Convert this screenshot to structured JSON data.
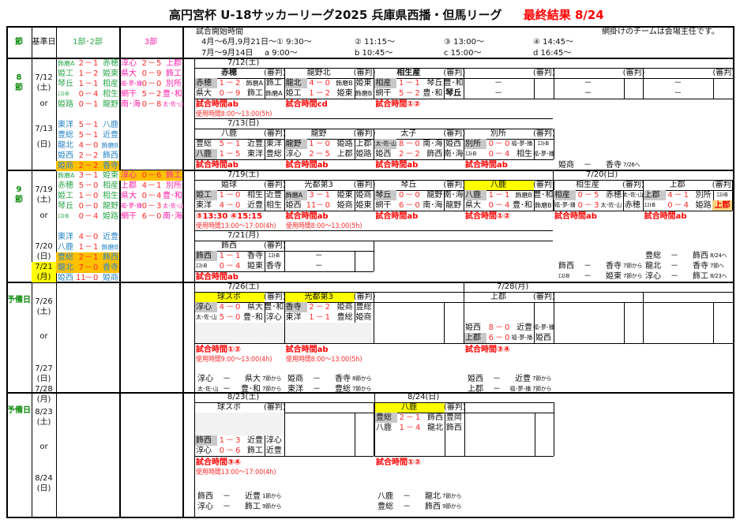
{
  "title": "高円宮杯 U-18サッカーリーグ2025 兵庫県西播・但馬リーグ",
  "result": "最終結果 8/24",
  "dash": "－",
  "colors": {
    "score": "#ff2a2a",
    "div12_first": "#2ea84f",
    "div12_second": "#2b86c9",
    "div3": "#ff22aa",
    "host": "#c8c8c8",
    "highlight": "#ffff00",
    "rescheduled": "#ffc000",
    "label": "#0a8a0a"
  },
  "header": {
    "col_setsu": "節",
    "col_date": "基準日",
    "col_div12": "1部･2部",
    "col_div3": "3部",
    "start_label": "試合開始時間",
    "row1": [
      "4月～6月,9月21日～①  9:30～",
      "②  11:15～",
      "③  13:00～",
      "④  14:45～"
    ],
    "row2": [
      "7月～9月14日",
      "a   9:00～",
      "b   10:45～",
      "c   15:00～",
      "d   16:45～"
    ],
    "note": "網掛けのチームは会場主任です。"
  },
  "sections": [
    {
      "label": [
        "8",
        "節"
      ],
      "dates": [
        "7/12",
        "(土)",
        "or",
        "7/13",
        "(日)"
      ],
      "div12": [
        {
          "h": "飾磨A",
          "hs": "2",
          "as": "1",
          "a": "赤穂"
        },
        {
          "h": "姫工",
          "hs": "1",
          "as": "2",
          "a": "姫東"
        },
        {
          "h": "琴丘",
          "hs": "1",
          "as": "1",
          "a": "相産"
        },
        {
          "h": "ｴｽﾄB",
          "hs": "0",
          "as": "4",
          "a": "相生"
        },
        {
          "h": "姫路",
          "hs": "0",
          "as": "1",
          "a": "龍野"
        },
        {
          "h": "東洋",
          "hs": "5",
          "as": "1",
          "a": "八鹿"
        },
        {
          "h": "豊総",
          "hs": "5",
          "as": "1",
          "a": "近豊"
        },
        {
          "h": "龍北",
          "hs": "4",
          "as": "0",
          "a": "飾磨B"
        },
        {
          "h": "姫西",
          "hs": "2",
          "as": "2",
          "a": "飾西"
        },
        {
          "h": "姫商",
          "hs": "2",
          "as": "2",
          "a": "香寺",
          "bg": "org"
        }
      ],
      "div3": [
        {
          "h": "淳心",
          "hs": "2",
          "as": "5",
          "a": "上郡"
        },
        {
          "h": "県大",
          "hs": "0",
          "as": "9",
          "a": "飾工"
        },
        {
          "h": "福･夢･播",
          "hs": "0",
          "as": "0",
          "a": "別所"
        },
        {
          "h": "網干",
          "hs": "5",
          "as": "2",
          "a": "豊･和"
        },
        {
          "h": "南･海",
          "hs": "0",
          "as": "8",
          "a": "太･佐･山"
        }
      ]
    },
    {
      "label": [
        "9",
        "節"
      ],
      "dates": [
        "7/19",
        "(土)",
        "or",
        "7/20",
        "(日)",
        "7/21",
        "(月)"
      ],
      "div12": [
        {
          "h": "飾磨A",
          "hs": "3",
          "as": "1",
          "a": "姫東"
        },
        {
          "h": "赤穂",
          "hs": "5",
          "as": "0",
          "a": "相産"
        },
        {
          "h": "姫工",
          "hs": "1",
          "as": "0",
          "a": "相生"
        },
        {
          "h": "琴丘",
          "hs": "0",
          "as": "0",
          "a": "龍野"
        },
        {
          "h": "ｴｽﾄB",
          "hs": "0",
          "as": "4",
          "a": "姫路"
        },
        {
          "h": "東洋",
          "hs": "4",
          "as": "0",
          "a": "近豊"
        },
        {
          "h": "八鹿",
          "hs": "1",
          "as": "1",
          "a": "飾磨B"
        },
        {
          "h": "豊総",
          "hs": "2",
          "as": "1",
          "a": "飾西",
          "bg": "org"
        },
        {
          "h": "龍北",
          "hs": "7",
          "as": "0",
          "a": "香寺",
          "bg": "org"
        },
        {
          "h": "姫西",
          "hs": "11",
          "as": "0",
          "a": "姫商"
        }
      ],
      "div3": [
        {
          "h": "淳心",
          "hs": "0",
          "as": "6",
          "a": "飾工",
          "bg": "org"
        },
        {
          "h": "上郡",
          "hs": "4",
          "as": "1",
          "a": "別所"
        },
        {
          "h": "県大",
          "hs": "0",
          "as": "4",
          "a": "豊･和"
        },
        {
          "h": "福･夢･播",
          "hs": "0",
          "as": "3",
          "a": "太･佐･山"
        },
        {
          "h": "網干",
          "hs": "6",
          "as": "0",
          "a": "南･海"
        }
      ]
    },
    {
      "label": [
        "予備日"
      ],
      "dates": [
        "7/26",
        "(土)",
        "or",
        "7/27",
        "(日)",
        "7/28",
        "(月)"
      ],
      "div12": [],
      "div3": []
    },
    {
      "label": [
        "予備日"
      ],
      "dates": [
        "8/23",
        "(土)",
        "or",
        "8/24",
        "(日)"
      ],
      "div12": [],
      "div3": []
    }
  ],
  "days": [
    {
      "date": "7/12(土)",
      "blocks": [
        {
          "venue": "赤穂",
          "bold": true,
          "ref_label": "(審判)",
          "matches": [
            {
              "h": "赤穂",
              "hs": "1",
              "as": "2",
              "a": "飾磨A",
              "r": "飾工",
              "host": true
            },
            {
              "h": "県大",
              "hs": "0",
              "as": "9",
              "a": "飾工",
              "r": "飾磨A"
            }
          ],
          "time": "試合時間ab",
          "usage": "使用時間8:00～13:00(5h)"
        },
        {
          "venue": "龍野北",
          "ref_label": "(審判)",
          "matches": [
            {
              "h": "龍北",
              "hs": "4",
              "as": "0",
              "a": "飾磨B",
              "r": "姫東",
              "host": true
            },
            {
              "h": "姫工",
              "hs": "1",
              "as": "2",
              "a": "姫東",
              "r": "飾磨B"
            }
          ],
          "time": "試合時間cd"
        },
        {
          "venue": "相生産",
          "bold": true,
          "ref_label": "(審判)",
          "matches": [
            {
              "h": "相産",
              "hs": "1",
              "as": "1",
              "a": "琴丘",
              "r": "豊･和",
              "host": true
            },
            {
              "h": "網干",
              "hs": "5",
              "as": "2",
              "a": "豊･和",
              "r": "琴丘",
              "rstyle": "b"
            }
          ],
          "time": "試合時間①②"
        },
        {
          "venue": "",
          "ref_label": "(審判)",
          "matches": [
            {
              "empty": true
            },
            {
              "empty": true
            }
          ]
        },
        {
          "venue": "",
          "ref_label": "(審判)",
          "matches": [
            {
              "empty": true
            },
            {
              "empty": true
            }
          ]
        },
        {
          "venue": "",
          "ref_label": "(審判)",
          "matches": [
            {
              "empty": true
            },
            {
              "empty": true
            }
          ]
        }
      ]
    },
    {
      "date": "7/13(日)",
      "blocks": [
        {
          "venue": "八鹿",
          "ref_label": "(審判)",
          "matches": [
            {
              "h": "豊総",
              "hs": "5",
              "as": "1",
              "a": "近豊",
              "r": "東洋"
            },
            {
              "h": "八鹿",
              "hs": "1",
              "as": "5",
              "a": "東洋",
              "r": "豊総",
              "host": true
            }
          ],
          "time": "試合時間ab"
        },
        {
          "venue": "龍野",
          "ref_label": "(審判)",
          "matches": [
            {
              "h": "龍野",
              "hs": "1",
              "as": "0",
              "a": "姫路",
              "r": "上郡",
              "host": true
            },
            {
              "h": "淳心",
              "hs": "2",
              "as": "5",
              "a": "上郡",
              "r": "姫路"
            }
          ],
          "time": "試合時間ab"
        },
        {
          "venue": "太子",
          "ref_label": "(審判)",
          "matches": [
            {
              "h": "太･佐･山",
              "hs": "8",
              "as": "0",
              "a": "南･海",
              "r": "姫西",
              "host": true
            },
            {
              "h": "姫西",
              "hs": "2",
              "as": "2",
              "a": "飾西",
              "r": "南･海"
            }
          ],
          "time": "試合時間ab"
        },
        {
          "venue": "別所",
          "ref_label": "(審判)",
          "matches": [
            {
              "h": "別所",
              "hs": "0",
              "as": "0",
              "a": "福･夢･播",
              "r": "ｴｽﾄB",
              "host": true
            },
            {
              "h": "ｴｽﾄB",
              "hs": "0",
              "as": "4",
              "a": "相生",
              "r": "福･夢･播"
            }
          ],
          "time": "試合時間ab"
        }
      ]
    },
    {
      "date": "7/19(土)",
      "blocks": [
        {
          "venue": "姫球",
          "ref_label": "(審判)",
          "matches": [
            {
              "h": "姫工",
              "hs": "1",
              "as": "0",
              "a": "相生",
              "r": "近豊",
              "host": true
            },
            {
              "h": "東洋",
              "hs": "4",
              "as": "0",
              "a": "近豊",
              "r": "相生"
            }
          ],
          "time": "③13:30  ④15:15",
          "usage": "使用時間13:00～17:00(4h)"
        },
        {
          "venue": "光都第3",
          "ref_label": "(審判)",
          "matches": [
            {
              "h": "飾磨A",
              "hs": "3",
              "as": "1",
              "a": "姫東",
              "r": "姫商",
              "host": true
            },
            {
              "h": "姫西",
              "hs": "11",
              "as": "0",
              "a": "姫商",
              "r": "姫東"
            }
          ],
          "time": "試合時間ab",
          "usage": "使用時間8:00～13:00(5h)"
        },
        {
          "venue": "琴丘",
          "ref_label": "(審判)",
          "matches": [
            {
              "h": "琴丘",
              "hs": "0",
              "as": "0",
              "a": "龍野",
              "r": "南･海",
              "host": true
            },
            {
              "h": "網干",
              "hs": "6",
              "as": "0",
              "a": "南･海",
              "r": "龍野"
            }
          ],
          "time": "試合時間ab"
        },
        {
          "venue": "八鹿",
          "hl": true,
          "ref_label": "(審判)",
          "matches": [
            {
              "h": "八鹿",
              "hs": "1",
              "as": "1",
              "a": "飾磨B",
              "r": "豊･和",
              "host": true
            },
            {
              "h": "県大",
              "hs": "0",
              "as": "4",
              "a": "豊･和",
              "r": "飾磨B"
            }
          ],
          "time": "試合時間①②"
        }
      ]
    },
    {
      "date": "7/20(日)",
      "blocks": [
        {
          "venue": "相生産",
          "ref_label": "(審判)",
          "matches": [
            {
              "h": "相産",
              "hs": "0",
              "as": "5",
              "a": "赤穂",
              "r": "太･佐･山",
              "host": true
            },
            {
              "h": "福･夢･播",
              "hs": "0",
              "as": "3",
              "a": "太･佐･山",
              "r": "赤穂"
            }
          ],
          "time": "試合時間ab"
        },
        {
          "venue": "上郡",
          "ref_label": "(審判)",
          "matches": [
            {
              "h": "上郡",
              "hs": "4",
              "as": "1",
              "a": "別所",
              "r": "ｴｽﾄB",
              "host": true
            },
            {
              "h": "ｴｽﾄB",
              "hs": "0",
              "as": "4",
              "a": "姫路",
              "r": "上郡",
              "rstyle": "refhl"
            }
          ],
          "time": "試合時間ab"
        }
      ]
    },
    {
      "date": "7/21(月)",
      "blocks": [
        {
          "venue": "飾西",
          "ref_label": "(審判)",
          "matches": [
            {
              "h": "飾西",
              "hs": "1",
              "as": "1",
              "a": "香寺",
              "r": "ｴｽﾄB",
              "host": true
            },
            {
              "h": "ｴｽﾄB",
              "hs": "0",
              "as": "4",
              "a": "姫東",
              "r": "香寺"
            }
          ],
          "time": "試合時間ab"
        },
        {
          "venue": "",
          "ref_label": "",
          "matches": [
            {
              "empty": true
            },
            {
              "empty": true
            }
          ]
        }
      ]
    },
    {
      "date": "7/26(土)",
      "blocks": [
        {
          "venue": "球スポ",
          "hl": true,
          "ref_label": "(審判)",
          "matches": [
            {
              "h": "淳心",
              "hs": "4",
              "as": "0",
              "a": "県大",
              "r": "豊･和",
              "host": true
            },
            {
              "h": "太･佐･山",
              "hs": "5",
              "as": "0",
              "a": "豊･和",
              "r": "淳心"
            }
          ],
          "time": "試合時間①②",
          "usage": "使用時間9:00～13:00(4h)"
        },
        {
          "venue": "光都第3",
          "hl": true,
          "ref_label": "(審判)",
          "matches": [
            {
              "h": "香寺",
              "hs": "2",
              "as": "2",
              "a": "姫商",
              "r": "豊総",
              "host": true
            },
            {
              "h": "東洋",
              "hs": "1",
              "as": "1",
              "a": "豊総",
              "r": "姫商"
            }
          ],
          "time": "試合時間ab",
          "usage": "使用時間8:00～13:00(5h)"
        },
        {
          "venue": "",
          "ref_label": "",
          "matches": []
        }
      ]
    },
    {
      "date": "7/28(月)",
      "blocks": [
        {
          "venue": "上郡",
          "ref_label": "(審判)",
          "matches": [
            {
              "h": "姫西",
              "hs": "8",
              "as": "0",
              "a": "近豊",
              "r": "福･夢･播"
            },
            {
              "h": "上郡",
              "hs": "6",
              "as": "0",
              "a": "福･夢･播",
              "r": "姫西",
              "host": true
            }
          ],
          "time": "試合時間③④"
        },
        {
          "venue": "",
          "ref_label": "",
          "matches": []
        },
        {
          "venue": "",
          "ref_label": "",
          "matches": []
        }
      ]
    },
    {
      "date": "8/23(土)",
      "blocks": [
        {
          "venue": "球スポ",
          "ref_label": "(審判)",
          "matches": [
            {
              "h": "飾西",
              "hs": "1",
              "as": "3",
              "a": "近豊",
              "r": "淳心",
              "host": true
            },
            {
              "h": "淳心",
              "hs": "0",
              "as": "6",
              "a": "飾工",
              "r": "近豊"
            }
          ],
          "time": "試合時間③④",
          "usage": "使用時間13:00～17:00(4h)"
        },
        {
          "venue": "",
          "ref_label": "",
          "matches": []
        }
      ]
    },
    {
      "date": "8/24(日)",
      "blocks": [
        {
          "venue": "八鹿",
          "hl": true,
          "ref_label": "(審判)",
          "matches": [
            {
              "h": "豊総",
              "hs": "2",
              "as": "1",
              "a": "飾西",
              "r": "豊岡",
              "host": true
            },
            {
              "h": "八鹿",
              "hs": "1",
              "as": "4",
              "a": "龍北",
              "r": "飾西"
            }
          ],
          "time": "試合時間①②"
        },
        {
          "venue": "",
          "ref_label": "",
          "matches": []
        }
      ]
    }
  ],
  "notes": [
    {
      "h": "姫商",
      "a": "香寺",
      "n": "7/26へ"
    },
    {
      "h": "豊総",
      "a": "飾西",
      "n": "8/24へ"
    },
    {
      "h": "飾西",
      "a": "香寺",
      "n": "7節から"
    },
    {
      "h": "龍北",
      "a": "香寺",
      "n": "7節へ"
    },
    {
      "h": "ｴｽﾄB",
      "a": "姫東",
      "n": "7節から"
    },
    {
      "h": "淳心",
      "a": "飾工",
      "n": "8/23へ"
    },
    {
      "h": "淳心",
      "a": "県大",
      "n": "7節から"
    },
    {
      "h": "太･佐･山",
      "a": "豊･和",
      "n": "7節から"
    },
    {
      "h": "姫商",
      "a": "香寺",
      "n": "8節から"
    },
    {
      "h": "東洋",
      "a": "豊総",
      "n": "7節から"
    },
    {
      "h": "姫西",
      "a": "近豊",
      "n": "7節から"
    },
    {
      "h": "上郡",
      "a": "福･夢･播",
      "n": "7節から"
    },
    {
      "h": "飾西",
      "a": "近豊",
      "n": "1節から"
    },
    {
      "h": "淳心",
      "a": "飾工",
      "n": "9節から"
    },
    {
      "h": "八鹿",
      "a": "龍北",
      "n": "7節から"
    },
    {
      "h": "豊総",
      "a": "飾西",
      "n": "9節から"
    }
  ]
}
